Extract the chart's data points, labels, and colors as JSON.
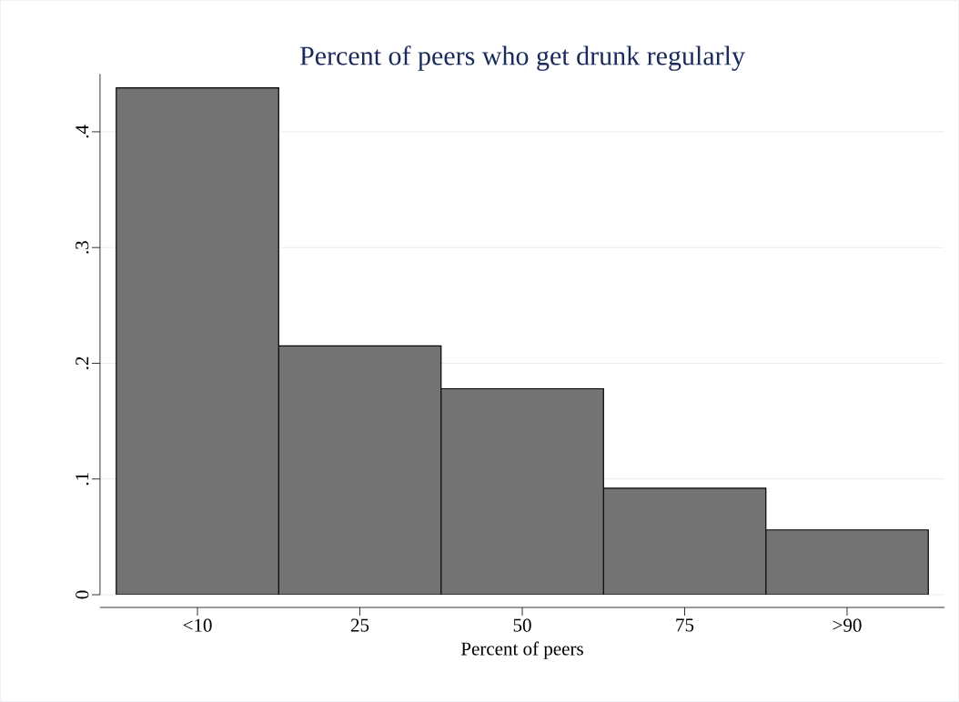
{
  "chart_data": {
    "type": "bar",
    "title": "Percent of peers who get drunk regularly",
    "xlabel": "Percent of peers",
    "categories": [
      "<10",
      "25",
      "50",
      "75",
      ">90"
    ],
    "values": [
      0.438,
      0.215,
      0.178,
      0.092,
      0.056
    ],
    "color": "#737373",
    "ylim": [
      0,
      0.45
    ],
    "yticks": [
      {
        "value": 0,
        "label": "0"
      },
      {
        "value": 0.1,
        "label": ".1"
      },
      {
        "value": 0.2,
        "label": ".2"
      },
      {
        "value": 0.3,
        "label": ".3"
      },
      {
        "value": 0.4,
        "label": ".4"
      }
    ],
    "grid": "y"
  }
}
